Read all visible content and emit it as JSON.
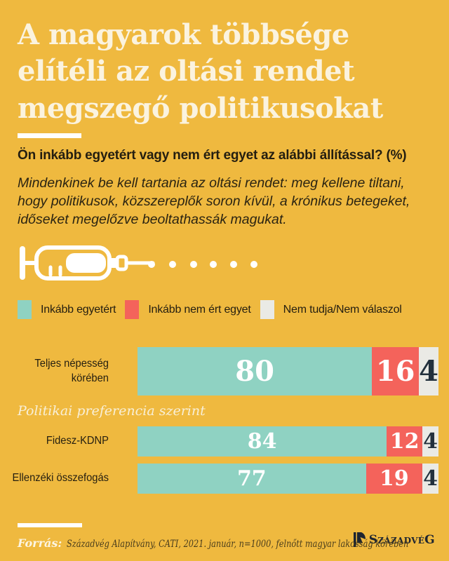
{
  "colors": {
    "background": "#EFB93F",
    "title_text": "#FBF3DF",
    "dark_text": "#241E10",
    "accent_white": "#FFFFFF",
    "agree": "#8FD2C2",
    "disagree": "#F4635B",
    "dont_know": "#EAEAE5",
    "value_on_gray": "#22303C",
    "section_label_text": "#F8EFD7",
    "footer_text": "#4A3D1C",
    "logo_dark": "#1E2530"
  },
  "header": {
    "title_lines": [
      "A magyarok többsége",
      "elítéli az oltási rendet",
      "megszegő politikusokat"
    ],
    "question": "Ön inkább egyetért vagy nem ért egyet az alábbi állítással? (%)",
    "statement_lines": [
      "Mindenkinek be kell tartania az oltási rendet: meg kellene tiltani,",
      "hogy politikusok, közszereplők soron kívül, a krónikus betegeket,",
      "időseket megelőzve beoltathassák magukat."
    ]
  },
  "icons": {
    "syringe": "syringe-icon",
    "dots_count": 6
  },
  "legend": [
    {
      "label": "Inkább egyetért",
      "color": "#8FD2C2"
    },
    {
      "label": "Inkább nem ért egyet",
      "color": "#F4635B"
    },
    {
      "label": "Nem tudja/Nem válaszol",
      "color": "#EAEAE5"
    }
  ],
  "section_label": "Politikai preferencia szerint",
  "chart_data": {
    "type": "bar",
    "orientation": "horizontal",
    "stacked": true,
    "unit": "%",
    "value_range": [
      0,
      100
    ],
    "categories": [
      "Teljes népesség körében",
      "Fidesz-KDNP",
      "Ellenzéki összefogás"
    ],
    "category_label_lines": [
      [
        "Teljes népesség",
        "körében"
      ],
      [
        "Fidesz-KDNP"
      ],
      [
        "Ellenzéki összefogás"
      ]
    ],
    "series": [
      {
        "name": "Inkább egyetért",
        "color": "#8FD2C2",
        "values": [
          80,
          84,
          77
        ]
      },
      {
        "name": "Inkább nem ért egyet",
        "color": "#F4635B",
        "values": [
          16,
          12,
          19
        ]
      },
      {
        "name": "Nem tudja/Nem válaszol",
        "color": "#EAEAE5",
        "values": [
          4,
          4,
          4
        ]
      }
    ],
    "group_label_after_first_row": "Politikai preferencia szerint",
    "legend_position": "top",
    "grid": false
  },
  "footer": {
    "source_label": "Forrás:",
    "source_text": "Századvég Alapítvány, CATI, 2021. január, n=1000, felnőtt magyar lakosság körében",
    "logo_text": "SzázadvéG"
  }
}
